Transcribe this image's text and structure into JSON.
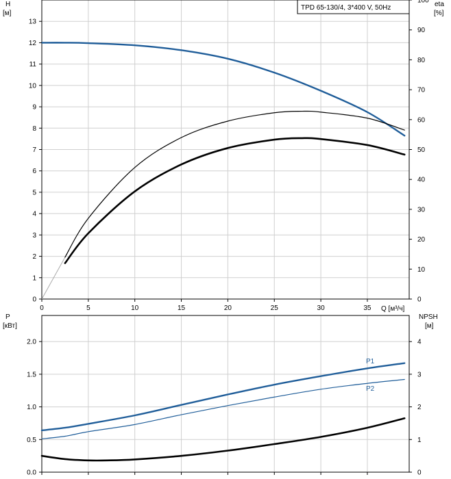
{
  "chart_data": [
    {
      "type": "line",
      "title": "TPD 65-130/4, 3*400 V, 50Hz",
      "ylabel_left": "H",
      "ylabel_left_unit": "[м]",
      "ylabel_right": "eta",
      "ylabel_right_unit": "[%]",
      "xlabel": "Q [м³/ч]",
      "xlim": [
        0,
        39.5
      ],
      "ylim_left": [
        0,
        14
      ],
      "ylim_right": [
        0,
        100
      ],
      "x_ticks": [
        0,
        5,
        10,
        15,
        20,
        25,
        30,
        35
      ],
      "y_left_ticks": [
        0,
        1,
        2,
        3,
        4,
        5,
        6,
        7,
        8,
        9,
        10,
        11,
        12,
        13
      ],
      "y_right_ticks": [
        0,
        10,
        20,
        30,
        40,
        50,
        60,
        70,
        80,
        90,
        100
      ],
      "grid": true,
      "series": [
        {
          "axis": "left",
          "color": "#1f5d99",
          "width": 2.4,
          "x": [
            0,
            2.5,
            5,
            10,
            15,
            20,
            25,
            30,
            35,
            39
          ],
          "y": [
            12.0,
            12.0,
            11.98,
            11.88,
            11.65,
            11.25,
            10.6,
            9.75,
            8.75,
            7.65
          ]
        },
        {
          "axis": "right",
          "color": "#aaaaaa",
          "width": 1.0,
          "x": [
            0,
            2.5
          ],
          "y": [
            0,
            14
          ]
        },
        {
          "axis": "right",
          "color": "#000000",
          "width": 1.2,
          "x": [
            2.5,
            5,
            10,
            15,
            20,
            25,
            28,
            30,
            35,
            39
          ],
          "y": [
            14,
            27,
            44,
            54,
            59.5,
            62.3,
            62.8,
            62.5,
            60.5,
            56.5
          ]
        },
        {
          "axis": "right",
          "color": "#000000",
          "width": 2.6,
          "x": [
            2.5,
            5,
            10,
            15,
            20,
            25,
            28,
            30,
            35,
            39
          ],
          "y": [
            12,
            22,
            36,
            45,
            50.5,
            53.3,
            53.8,
            53.5,
            51.5,
            48.3
          ]
        }
      ]
    },
    {
      "type": "line",
      "ylabel_left": "P",
      "ylabel_left_unit": "[кВт]",
      "ylabel_right": "NPSH",
      "ylabel_right_unit": "[м]",
      "xlim": [
        0,
        39.5
      ],
      "ylim_left": [
        0,
        2.4
      ],
      "ylim_right": [
        0,
        4.8
      ],
      "y_left_ticks": [
        0.0,
        0.5,
        1.0,
        1.5,
        2.0
      ],
      "y_left_tick_labels": [
        "0.0",
        "0.5",
        "1.0",
        "1.5",
        "2.0"
      ],
      "y_right_ticks": [
        0,
        1,
        2,
        3,
        4
      ],
      "grid": true,
      "series": [
        {
          "name": "P1",
          "axis": "left",
          "color": "#1f5d99",
          "width": 2.4,
          "x": [
            0,
            2.5,
            5,
            10,
            15,
            20,
            25,
            30,
            35,
            39
          ],
          "y": [
            0.64,
            0.68,
            0.74,
            0.87,
            1.03,
            1.19,
            1.34,
            1.47,
            1.59,
            1.67
          ]
        },
        {
          "name": "P2",
          "axis": "left",
          "color": "#1f5d99",
          "width": 1.2,
          "x": [
            0,
            2.5,
            5,
            10,
            15,
            20,
            25,
            30,
            35,
            39
          ],
          "y": [
            0.51,
            0.55,
            0.62,
            0.73,
            0.88,
            1.02,
            1.15,
            1.27,
            1.36,
            1.42
          ]
        },
        {
          "axis": "right",
          "color": "#000000",
          "width": 2.6,
          "x": [
            0,
            2.5,
            5,
            7,
            10,
            15,
            20,
            25,
            30,
            35,
            39
          ],
          "y": [
            0.5,
            0.4,
            0.36,
            0.36,
            0.39,
            0.5,
            0.66,
            0.86,
            1.08,
            1.36,
            1.65
          ]
        }
      ]
    }
  ]
}
